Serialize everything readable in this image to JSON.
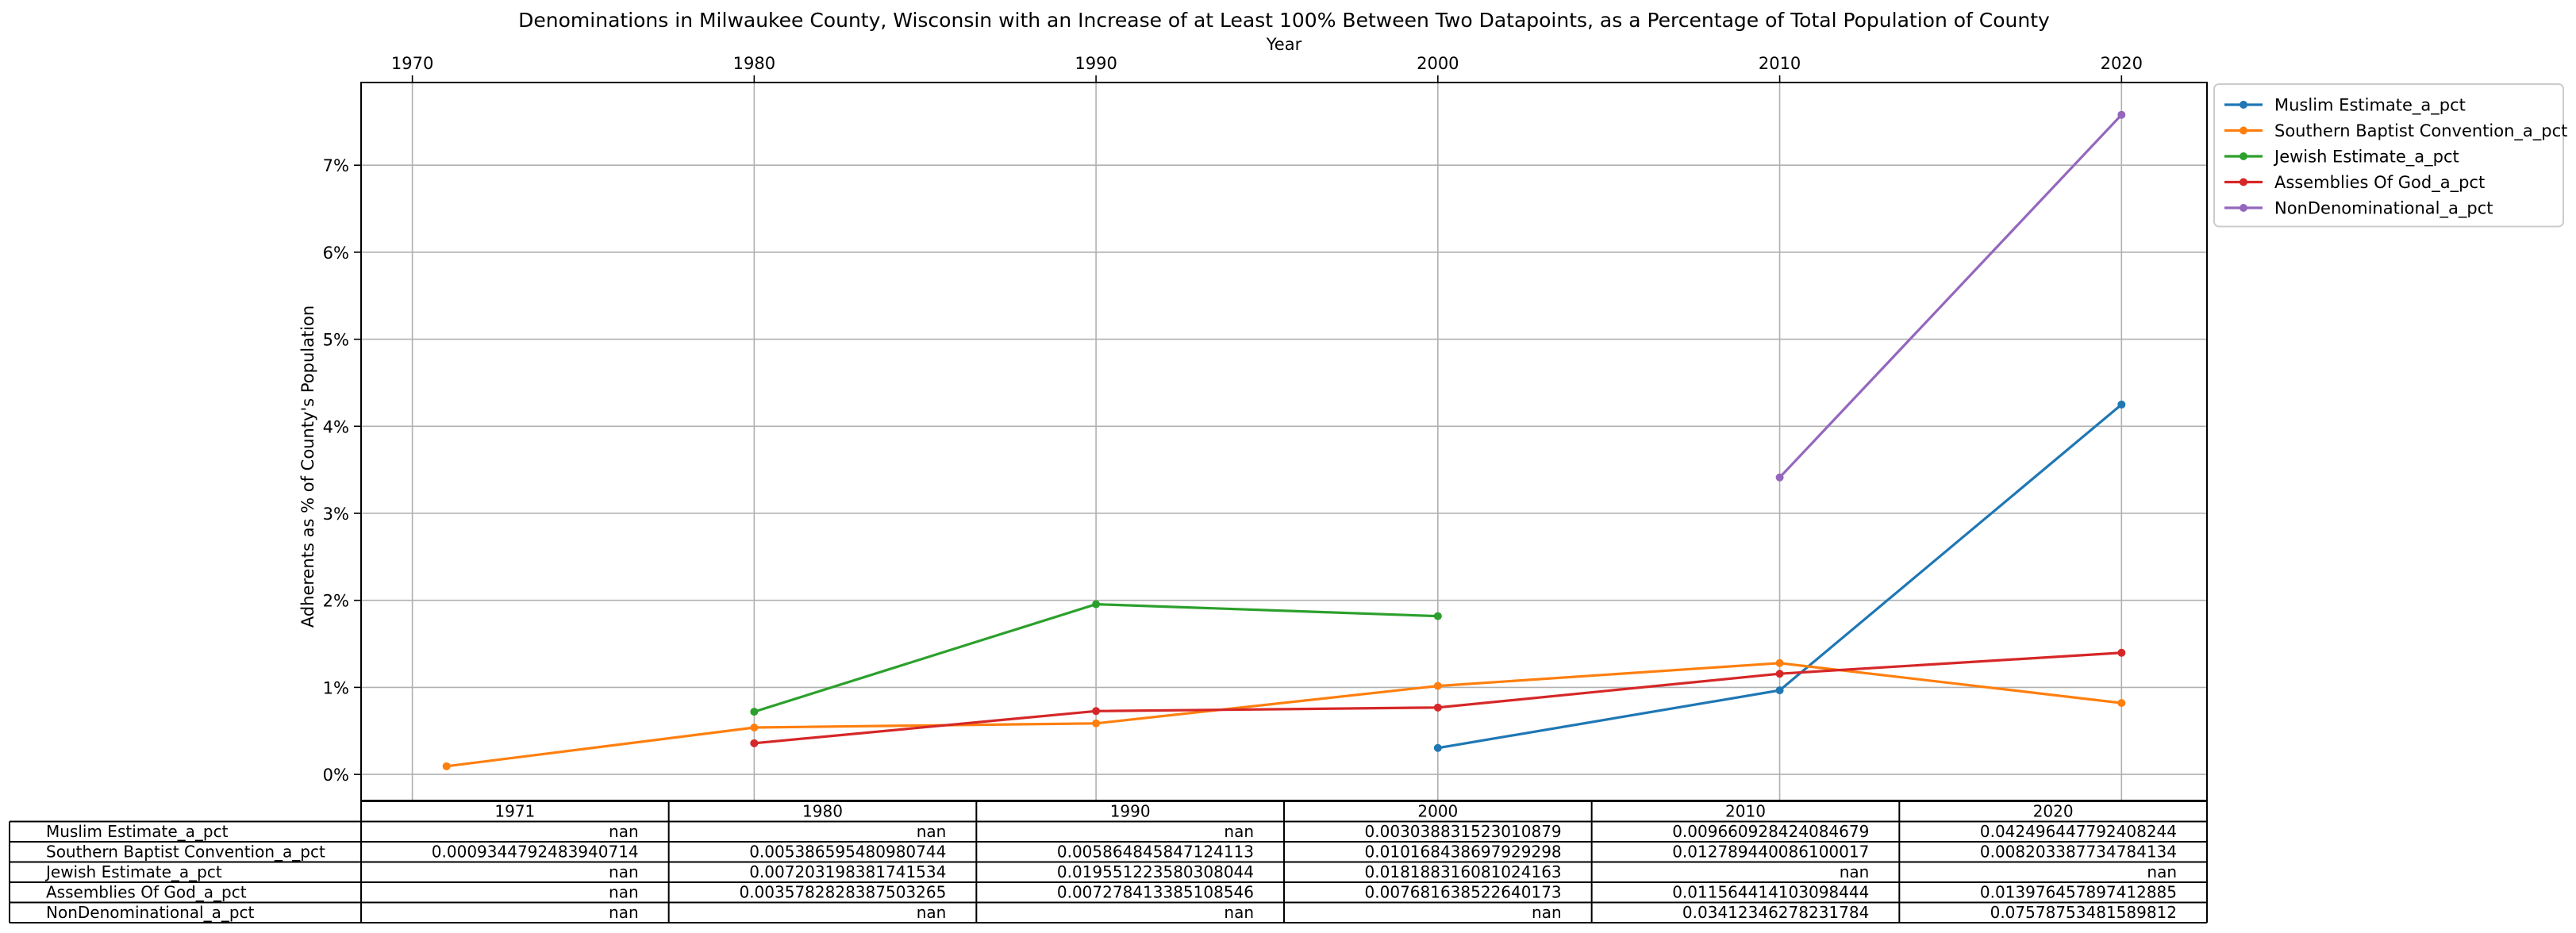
{
  "chart_data": {
    "type": "line",
    "title": "Denominations in Milwaukee County, Wisconsin with an Increase of at Least 100% Between Two Datapoints, as a Percentage of Total Population of County",
    "xlabel": "Year",
    "ylabel": "Adherents as % of County's Population",
    "x_ticks": [
      "1970",
      "1980",
      "1990",
      "2000",
      "2010",
      "2020"
    ],
    "y_ticks": [
      "0%",
      "1%",
      "2%",
      "3%",
      "4%",
      "5%",
      "6%",
      "7%"
    ],
    "xlim": [
      1968.5,
      2022.5
    ],
    "ylim": [
      -0.3,
      7.95
    ],
    "grid": true,
    "legend_position": "outside-right-top",
    "series": [
      {
        "name": "Muslim Estimate_a_pct",
        "color": "#1f77b4",
        "points": [
          [
            2000,
            0.3038
          ],
          [
            2010,
            0.9661
          ],
          [
            2020,
            4.2496
          ]
        ]
      },
      {
        "name": "Southern Baptist Convention_a_pct",
        "color": "#ff7f0e",
        "points": [
          [
            1971,
            0.0934
          ],
          [
            1980,
            0.5387
          ],
          [
            1990,
            0.5865
          ],
          [
            2000,
            1.0168
          ],
          [
            2010,
            1.2789
          ],
          [
            2020,
            0.8203
          ]
        ]
      },
      {
        "name": "Jewish Estimate_a_pct",
        "color": "#2ca02c",
        "points": [
          [
            1980,
            0.7203
          ],
          [
            1990,
            1.9551
          ],
          [
            2000,
            1.8188
          ]
        ]
      },
      {
        "name": "Assemblies Of God_a_pct",
        "color": "#d62728",
        "points": [
          [
            1980,
            0.3578
          ],
          [
            1990,
            0.7278
          ],
          [
            2000,
            0.7682
          ],
          [
            2010,
            1.1564
          ],
          [
            2020,
            1.3976
          ]
        ]
      },
      {
        "name": "NonDenominational_a_pct",
        "color": "#9467bd",
        "points": [
          [
            2010,
            3.4123
          ],
          [
            2020,
            7.5788
          ]
        ]
      }
    ],
    "table": {
      "columns": [
        "1971",
        "1980",
        "1990",
        "2000",
        "2010",
        "2020"
      ],
      "rows": [
        {
          "label": "Muslim Estimate_a_pct",
          "cells": [
            "nan",
            "nan",
            "nan",
            "0.003038831523010879",
            "0.009660928424084679",
            "0.042496447792408244"
          ]
        },
        {
          "label": "Southern Baptist Convention_a_pct",
          "cells": [
            "0.0009344792483940714",
            "0.005386595480980744",
            "0.005864845847124113",
            "0.010168438697929298",
            "0.012789440086100017",
            "0.008203387734784134"
          ]
        },
        {
          "label": "Jewish Estimate_a_pct",
          "cells": [
            "nan",
            "0.007203198381741534",
            "0.019551223580308044",
            "0.018188316081024163",
            "nan",
            "nan"
          ]
        },
        {
          "label": "Assemblies Of God_a_pct",
          "cells": [
            "nan",
            "0.0035782828387503265",
            "0.007278413385108546",
            "0.007681638522640173",
            "0.011564414103098444",
            "0.013976457897412885"
          ]
        },
        {
          "label": "NonDenominational_a_pct",
          "cells": [
            "nan",
            "nan",
            "nan",
            "nan",
            "0.03412346278231784",
            "0.07578753481589812"
          ]
        }
      ]
    }
  }
}
